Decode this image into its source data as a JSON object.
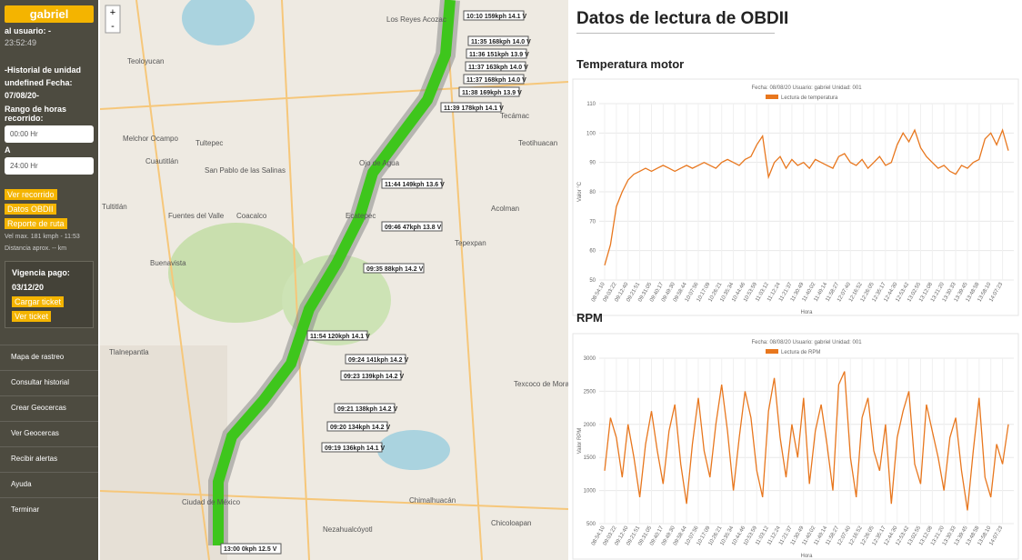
{
  "sidebar": {
    "user": "gabriel",
    "user_line": "al usuario: -",
    "clock": "23:52:49",
    "history": "-Historial de unidad undefined Fecha: 07/08/20-",
    "range_label": "Rango de horas recorrido:",
    "from": "00:00 Hr",
    "to_label": "A",
    "to": "24:00 Hr",
    "buttons": [
      "Ver recorrido",
      "Datos OBDII",
      "Reporte de ruta"
    ],
    "stats": [
      "Vel max. 181 kmph - 11:53",
      "Distancia aprox. -- km"
    ],
    "payment": {
      "label": "Vigencia pago:",
      "date": "03/12/20",
      "buttons": [
        "Cargar ticket",
        "Ver ticket"
      ]
    },
    "menu": [
      "Mapa de rastreo",
      "Consultar historial",
      "Crear Geocercas",
      "Ver Geocercas",
      "Recibir alertas",
      "Ayuda",
      "Terminar"
    ]
  },
  "map": {
    "zoom": [
      "+",
      "-"
    ],
    "places": [
      "Teoloyucan",
      "Melchor Ocampo",
      "Tultepec",
      "Cuautitlán",
      "Tultitlán",
      "Fuentes del Valle",
      "Coacalco",
      "Buenavista",
      "Ecatepec",
      "Tecámac",
      "Acolman",
      "Tepexpan",
      "Tlalnepantla",
      "Ciudad de México",
      "Nezahualcóyotl",
      "Chimalhuacán",
      "Chicoloapan",
      "Texcoco de Mora",
      "Los Reyes Acozac",
      "Ojo de Agua",
      "San Pablo de las Salinas",
      "Teotihuacan"
    ],
    "route_labels": [
      "10:10 159kph 14.1 V",
      "11:35 168kph 14.0 V",
      "11:36 151kph 13.9 V",
      "11:37 163kph 14.0 V",
      "11:37 168kph 14.0 V",
      "11:38 169kph 13.9 V",
      "11:39 178kph 14.1 V",
      "11:44 149kph 13.6 V",
      "09:46 47kph 13.8 V",
      "09:35 88kph 14.2 V",
      "11:54 120kph 14.1 V",
      "09:24 141kph 14.2 V",
      "09:23 139kph 14.2 V",
      "09:21 138kph 14.2 V",
      "09:20 134kph 14.2 V",
      "09:19 136kph 14.1 V",
      "13:00 0kph 12.5 V"
    ]
  },
  "panel": {
    "title": "Datos de lectura de OBDII"
  },
  "chart_data": [
    {
      "type": "line",
      "title": "Temperatura motor",
      "subtitle": "Fecha: 08/08/20 Usuario: gabriel Unidad: 001",
      "ylabel": "Valor °C",
      "xlabel": "Hora",
      "ylim": [
        50,
        110
      ],
      "yticks": [
        50,
        60,
        70,
        80,
        90,
        100,
        110
      ],
      "grid": true,
      "categories": [
        "08:54:10",
        null,
        "09:03:22",
        null,
        "09:12:40",
        null,
        "09:21:51",
        null,
        "09:31:05",
        null,
        "09:40:17",
        null,
        "09:49:30",
        null,
        "09:58:44",
        null,
        "10:07:56",
        null,
        "10:17:09",
        null,
        "10:26:21",
        null,
        "10:35:34",
        null,
        "10:44:46",
        null,
        "10:53:59",
        null,
        "11:03:12",
        null,
        "11:12:24",
        null,
        "11:21:37",
        null,
        "11:30:49",
        null,
        "11:40:02",
        null,
        "11:49:14",
        null,
        "11:58:27",
        null,
        "12:07:40",
        null,
        "12:16:52",
        null,
        "12:26:05",
        null,
        "12:35:17",
        null,
        "12:44:30",
        null,
        "12:53:42",
        null,
        "13:02:55",
        null,
        "13:12:08",
        null,
        "13:21:20",
        null,
        "13:30:33",
        null,
        "13:39:45",
        null,
        "13:48:58",
        null,
        "13:58:10",
        null,
        "14:07:23",
        null
      ],
      "series": [
        {
          "name": "Lectura de temperatura",
          "color": "#e8771e",
          "values": [
            55,
            62,
            75,
            80,
            84,
            86,
            87,
            88,
            87,
            88,
            89,
            88,
            87,
            88,
            89,
            88,
            89,
            90,
            89,
            88,
            90,
            91,
            90,
            89,
            91,
            92,
            96,
            99,
            85,
            90,
            92,
            88,
            91,
            89,
            90,
            88,
            91,
            90,
            89,
            88,
            92,
            93,
            90,
            89,
            91,
            88,
            90,
            92,
            89,
            90,
            96,
            100,
            97,
            101,
            95,
            92,
            90,
            88,
            89,
            87,
            86,
            89,
            88,
            90,
            91,
            98,
            100,
            96,
            101,
            94
          ]
        }
      ]
    },
    {
      "type": "line",
      "title": "RPM",
      "subtitle": "Fecha: 08/08/20 Usuario: gabriel Unidad: 001",
      "ylabel": "Valor RPM",
      "xlabel": "Hora",
      "ylim": [
        500,
        3000
      ],
      "yticks": [
        500,
        1000,
        1500,
        2000,
        2500,
        3000
      ],
      "grid": true,
      "categories": [
        "08:54:10",
        null,
        "09:03:22",
        null,
        "09:12:40",
        null,
        "09:21:51",
        null,
        "09:31:05",
        null,
        "09:40:17",
        null,
        "09:49:30",
        null,
        "09:58:44",
        null,
        "10:07:56",
        null,
        "10:17:09",
        null,
        "10:26:21",
        null,
        "10:35:34",
        null,
        "10:44:46",
        null,
        "10:53:59",
        null,
        "11:03:12",
        null,
        "11:12:24",
        null,
        "11:21:37",
        null,
        "11:30:49",
        null,
        "11:40:02",
        null,
        "11:49:14",
        null,
        "11:58:27",
        null,
        "12:07:40",
        null,
        "12:16:52",
        null,
        "12:26:05",
        null,
        "12:35:17",
        null,
        "12:44:30",
        null,
        "12:53:42",
        null,
        "13:02:55",
        null,
        "13:12:08",
        null,
        "13:21:20",
        null,
        "13:30:33",
        null,
        "13:39:45",
        null,
        "13:48:58",
        null,
        "13:58:10",
        null,
        "14:07:23",
        null
      ],
      "series": [
        {
          "name": "Lectura de RPM",
          "color": "#e8771e",
          "values": [
            1300,
            2100,
            1800,
            1200,
            2000,
            1500,
            900,
            1700,
            2200,
            1600,
            1100,
            1900,
            2300,
            1400,
            800,
            1700,
            2400,
            1600,
            1200,
            2000,
            2600,
            1900,
            1000,
            1800,
            2500,
            2100,
            1300,
            900,
            2200,
            2700,
            1800,
            1200,
            2000,
            1500,
            2400,
            1100,
            1900,
            2300,
            1700,
            1000,
            2600,
            2800,
            1500,
            900,
            2100,
            2400,
            1600,
            1300,
            2000,
            800,
            1800,
            2200,
            2500,
            1400,
            1100,
            2300,
            1900,
            1500,
            1000,
            1800,
            2100,
            1300,
            700,
            1600,
            2400,
            1200,
            900,
            1700,
            1400,
            2000
          ]
        }
      ]
    }
  ]
}
